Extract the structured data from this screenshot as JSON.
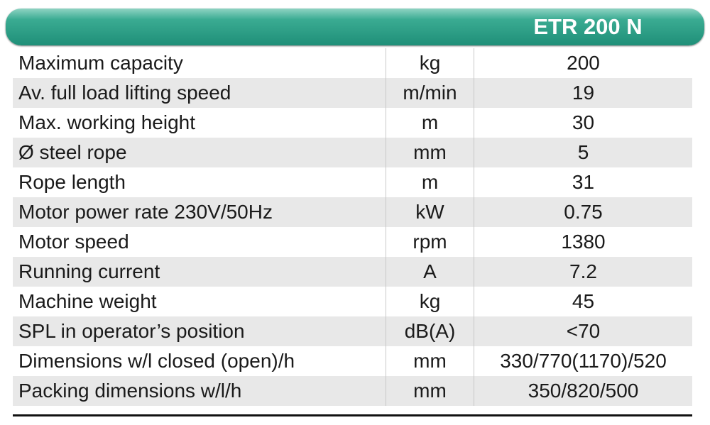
{
  "header": {
    "title": "ETR 200 N"
  },
  "table": {
    "rows": [
      [
        "Maximum capacity",
        "kg",
        "200"
      ],
      [
        "Av. full load lifting speed",
        "m/min",
        "19"
      ],
      [
        "Max. working height",
        "m",
        "30"
      ],
      [
        "Ø steel rope",
        "mm",
        "5"
      ],
      [
        "Rope length",
        "m",
        "31"
      ],
      [
        "Motor power rate 230V/50Hz",
        "kW",
        "0.75"
      ],
      [
        "Motor speed",
        "rpm",
        "1380"
      ],
      [
        "Running current",
        "A",
        "7.2"
      ],
      [
        "Machine weight",
        "kg",
        "45"
      ],
      [
        "SPL in operator’s position",
        "dB(A)",
        "<70"
      ],
      [
        "Dimensions w/l closed (open)/h",
        "mm",
        "330/770(1170)/520"
      ],
      [
        "Packing dimensions w/l/h",
        "mm",
        "350/820/500"
      ]
    ]
  }
}
